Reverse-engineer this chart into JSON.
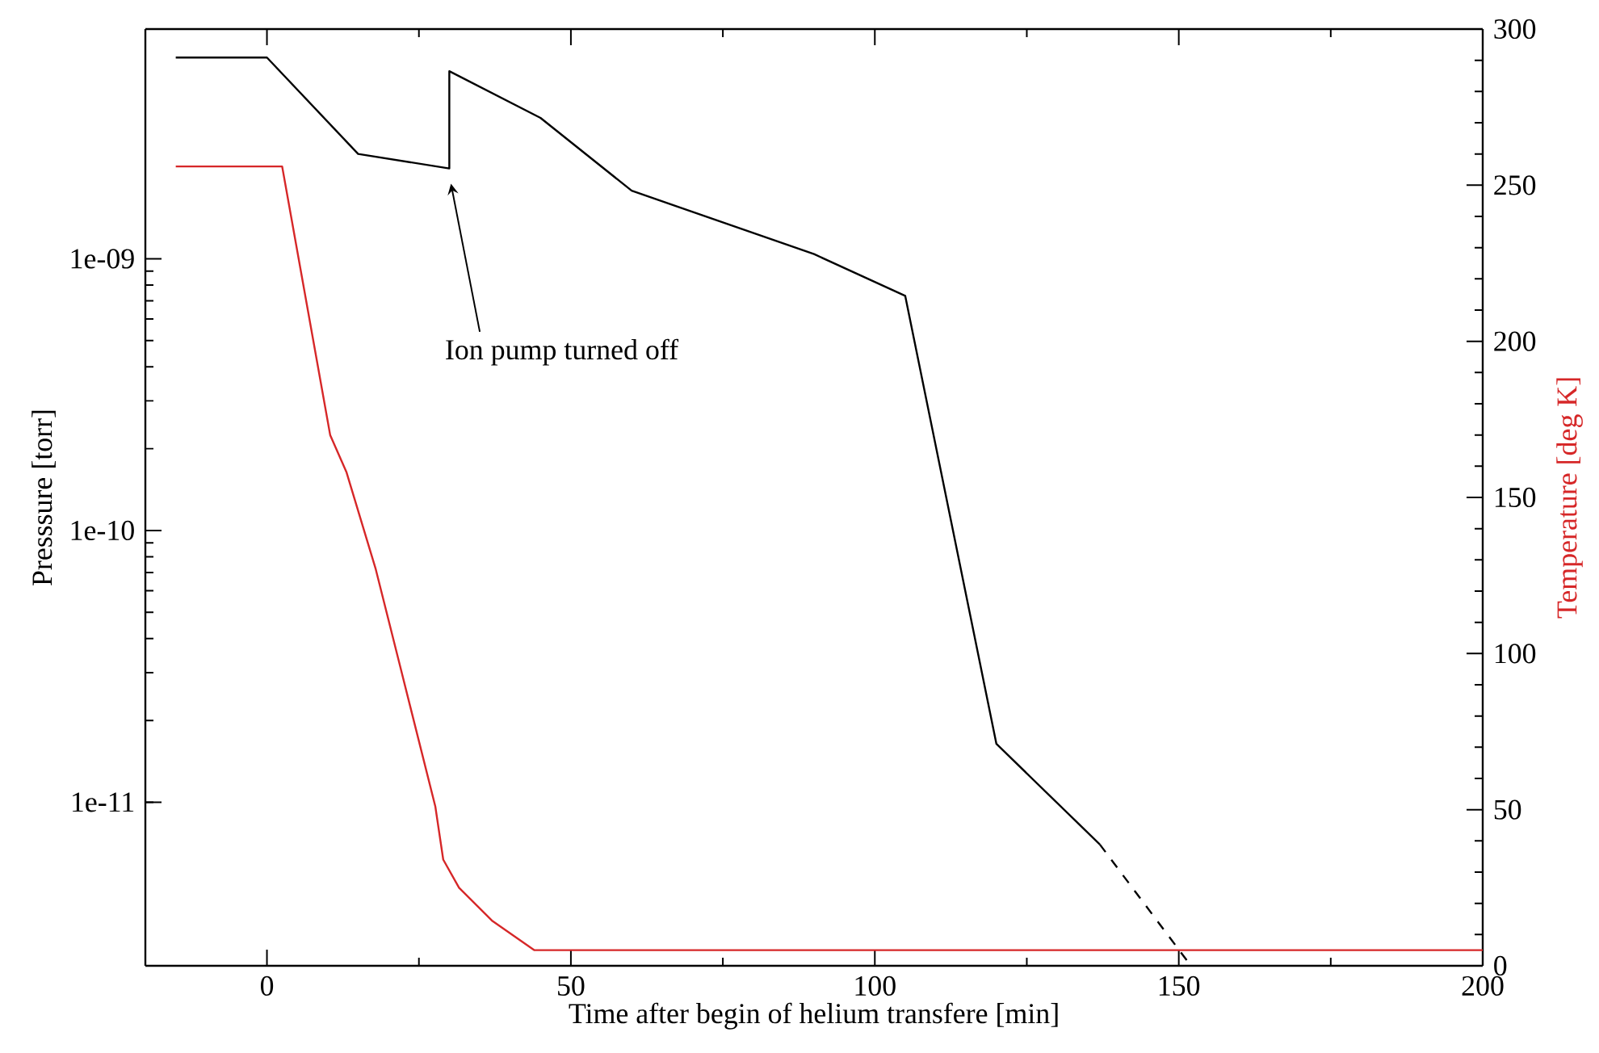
{
  "chart_data": {
    "type": "line",
    "xlabel": "Time after begin of helium transfere [min]",
    "ylabel": "Presssure [torr]",
    "y2label": "Temperature [deg K]",
    "xlim": [
      -20,
      200
    ],
    "xticks": [
      0,
      50,
      100,
      150,
      200
    ],
    "ylim": [
      2.5e-12,
      7e-09
    ],
    "yticks": [
      {
        "value": 1e-11,
        "label": "1e-11"
      },
      {
        "value": 1e-10,
        "label": "1e-10"
      },
      {
        "value": 1e-09,
        "label": "1e-09"
      }
    ],
    "y2lim": [
      0,
      300
    ],
    "y2ticks": [
      0,
      50,
      100,
      150,
      200,
      250,
      300
    ],
    "log": "y",
    "marker": "none",
    "series": [
      {
        "color": "#000000",
        "line_style": "solid",
        "x": [
          -15,
          0,
          15,
          30,
          30,
          45,
          60,
          90,
          105,
          120,
          137
        ],
        "values": [
          5.5e-09,
          5.5e-09,
          2.43e-09,
          2.15e-09,
          4.9e-09,
          3.3e-09,
          1.78e-09,
          1.04e-09,
          7.3e-10,
          1.64e-11,
          7e-12
        ]
      },
      {
        "color": "#000000",
        "line_style": "dashed",
        "x": [
          137,
          152
        ],
        "values": [
          7e-12,
          2.5e-12
        ]
      },
      {
        "color": "#d62728",
        "line_style": "solid",
        "axis": "y2",
        "x": [
          -15,
          2.5,
          10.4,
          13.1,
          17.9,
          21.9,
          27.7,
          29,
          31.6,
          37,
          44,
          200
        ],
        "values": [
          256,
          256,
          170,
          158,
          127,
          96,
          51,
          34,
          25,
          14.5,
          5,
          5
        ]
      }
    ],
    "annotations": [
      "Ion pump turned off"
    ]
  }
}
